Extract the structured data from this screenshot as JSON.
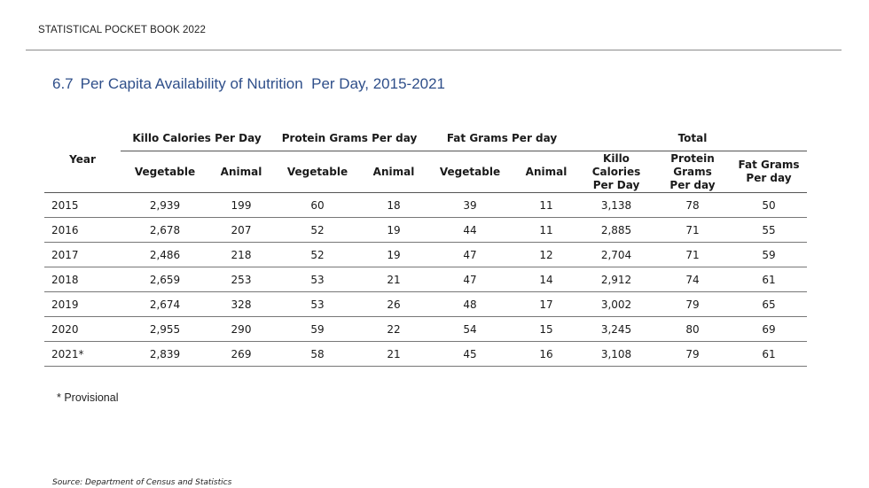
{
  "running_header": "STATISTICAL POCKET BOOK 2022",
  "section": {
    "number": "6.7",
    "title": "Per Capita Availability of Nutrition  Per Day, 2015-2021"
  },
  "table": {
    "year_header": "Year",
    "groups": {
      "kcal": "Killo Calories Per Day",
      "protein": "Protein Grams Per day",
      "fat": "Fat Grams Per day",
      "total": "Total"
    },
    "subheaders": {
      "kcal_veg": "Vegetable",
      "kcal_animal": "Animal",
      "protein_veg": "Vegetable",
      "protein_animal": "Animal",
      "fat_veg": "Vegetable",
      "fat_animal": "Animal",
      "total_kcal": "Killo Calories Per Day",
      "total_protein": "Protein Grams Per day",
      "total_fat": "Fat Grams Per day"
    },
    "rows": [
      {
        "year": "2015",
        "kcal_veg": "2,939",
        "kcal_animal": "199",
        "protein_veg": "60",
        "protein_animal": "18",
        "fat_veg": "39",
        "fat_animal": "11",
        "total_kcal": "3,138",
        "total_protein": "78",
        "total_fat": "50"
      },
      {
        "year": "2016",
        "kcal_veg": "2,678",
        "kcal_animal": "207",
        "protein_veg": "52",
        "protein_animal": "19",
        "fat_veg": "44",
        "fat_animal": "11",
        "total_kcal": "2,885",
        "total_protein": "71",
        "total_fat": "55"
      },
      {
        "year": "2017",
        "kcal_veg": "2,486",
        "kcal_animal": "218",
        "protein_veg": "52",
        "protein_animal": "19",
        "fat_veg": "47",
        "fat_animal": "12",
        "total_kcal": "2,704",
        "total_protein": "71",
        "total_fat": "59"
      },
      {
        "year": "2018",
        "kcal_veg": "2,659",
        "kcal_animal": "253",
        "protein_veg": "53",
        "protein_animal": "21",
        "fat_veg": "47",
        "fat_animal": "14",
        "total_kcal": "2,912",
        "total_protein": "74",
        "total_fat": "61"
      },
      {
        "year": "2019",
        "kcal_veg": "2,674",
        "kcal_animal": "328",
        "protein_veg": "53",
        "protein_animal": "26",
        "fat_veg": "48",
        "fat_animal": "17",
        "total_kcal": "3,002",
        "total_protein": "79",
        "total_fat": "65"
      },
      {
        "year": "2020",
        "kcal_veg": "2,955",
        "kcal_animal": "290",
        "protein_veg": "59",
        "protein_animal": "22",
        "fat_veg": "54",
        "fat_animal": "15",
        "total_kcal": "3,245",
        "total_protein": "80",
        "total_fat": "69"
      },
      {
        "year": "2021*",
        "kcal_veg": "2,839",
        "kcal_animal": "269",
        "protein_veg": "58",
        "protein_animal": "21",
        "fat_veg": "45",
        "fat_animal": "16",
        "total_kcal": "3,108",
        "total_protein": "79",
        "total_fat": "61"
      }
    ]
  },
  "footnote": "* Provisional",
  "source": "Source: Department of Census and Statistics"
}
